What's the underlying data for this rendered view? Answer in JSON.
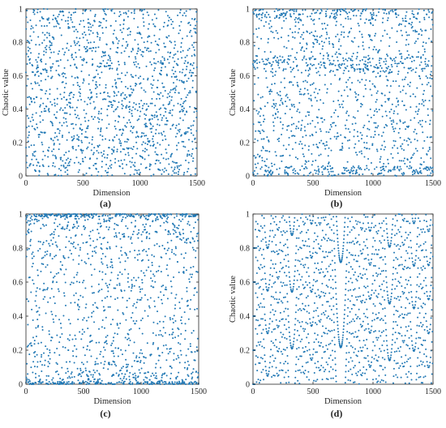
{
  "figure": {
    "marker_color": "#1f77b4"
  },
  "chart_data": [
    {
      "type": "scatter",
      "panel_label": "(a)",
      "xlabel": "Dimension",
      "ylabel": "Chaotic value",
      "xlim": [
        0,
        1500
      ],
      "ylim": [
        0,
        1
      ],
      "xticks": [
        "0",
        "500",
        "1000",
        "1500"
      ],
      "yticks": [
        "0",
        "0.2",
        "0.4",
        "0.6",
        "0.8",
        "1"
      ],
      "grid": false,
      "series": [
        {
          "pattern": "uniform_random",
          "n_points": 1500,
          "x": [
            0,
            1,
            2,
            3,
            4,
            5,
            6,
            7,
            8,
            9,
            10,
            11,
            12,
            13,
            14,
            15,
            16,
            17,
            18,
            19
          ],
          "y": [
            0.62,
            0.17,
            0.88,
            0.41,
            0.95,
            0.08,
            0.73,
            0.29,
            0.54,
            0.99,
            0.12,
            0.67,
            0.36,
            0.81,
            0.05,
            0.47,
            0.92,
            0.23,
            0.58,
            0.77
          ]
        }
      ]
    },
    {
      "type": "scatter",
      "panel_label": "(b)",
      "xlabel": "Dimension",
      "ylabel": "Chaotic value",
      "xlim": [
        0,
        1500
      ],
      "ylim": [
        0,
        1
      ],
      "xticks": [
        "0",
        "500",
        "1000",
        "1500"
      ],
      "yticks": [
        "0",
        "0.2",
        "0.4",
        "0.6",
        "0.8",
        "1"
      ],
      "grid": false,
      "series": [
        {
          "pattern": "clustered_0_0.67_1",
          "n_points": 1500,
          "x": [
            0,
            1,
            2,
            3,
            4,
            5,
            6,
            7,
            8,
            9,
            10,
            11,
            12,
            13,
            14,
            15,
            16,
            17,
            18,
            19
          ],
          "y": [
            0.67,
            0.02,
            0.98,
            0.66,
            0.31,
            0.85,
            0.01,
            0.69,
            0.45,
            0.97,
            0.12,
            0.65,
            0.78,
            0.03,
            0.55,
            0.68,
            0.99,
            0.22,
            0.64,
            0.07
          ]
        }
      ]
    },
    {
      "type": "scatter",
      "panel_label": "(c)",
      "xlabel": "Dimension",
      "ylabel": "",
      "xlim": [
        0,
        1500
      ],
      "ylim": [
        0,
        1
      ],
      "xticks": [
        "0",
        "500",
        "1000",
        "1500"
      ],
      "yticks": [
        "0",
        "0.2",
        "0.4",
        "0.6",
        "0.8",
        "1"
      ],
      "grid": false,
      "series": [
        {
          "pattern": "arcsine_dense_edges",
          "n_points": 1500,
          "x": [
            0,
            1,
            2,
            3,
            4,
            5,
            6,
            7,
            8,
            9,
            10,
            11,
            12,
            13,
            14,
            15,
            16,
            17,
            18,
            19
          ],
          "y": [
            0.99,
            0.01,
            0.97,
            0.04,
            0.88,
            0.75,
            0.02,
            0.98,
            0.12,
            0.5,
            0.95,
            0.03,
            0.79,
            0.22,
            0.99,
            0.06,
            0.9,
            0.35,
            0.01,
            0.96
          ]
        }
      ]
    },
    {
      "type": "scatter",
      "panel_label": "(d)",
      "xlabel": "Dimension",
      "ylabel": "Chaotic value",
      "xlim": [
        0,
        1500
      ],
      "ylim": [
        0,
        1
      ],
      "xticks": [
        "0",
        "500",
        "1000",
        "1500"
      ],
      "yticks": [
        "0",
        "0.2",
        "0.4",
        "0.6",
        "0.8",
        "1"
      ],
      "grid": false,
      "series": [
        {
          "pattern": "circle_map_diagonal_bands",
          "n_points": 1500,
          "x": [
            0,
            1,
            2,
            3,
            4,
            5,
            6,
            7,
            8,
            9,
            10,
            11,
            12,
            13,
            14,
            15,
            16,
            17,
            18,
            19
          ],
          "y": [
            0.0,
            0.2,
            0.4,
            0.6,
            0.8,
            0.0,
            0.2,
            0.4,
            0.6,
            0.8,
            0.0,
            0.2,
            0.4,
            0.6,
            0.8,
            0.0,
            0.2,
            0.4,
            0.6,
            0.8
          ]
        }
      ]
    }
  ]
}
